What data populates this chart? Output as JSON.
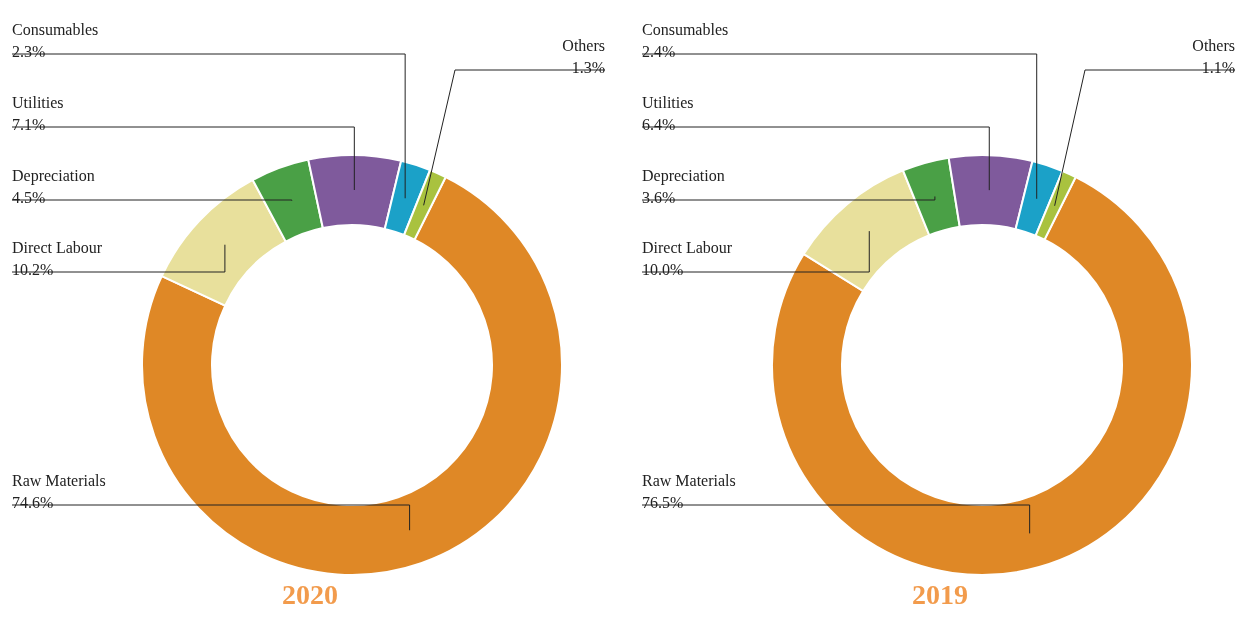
{
  "chart_data": [
    {
      "type": "donut",
      "title": "2020",
      "categories": [
        "Raw Materials",
        "Direct Labour",
        "Depreciation",
        "Utilities",
        "Consumables",
        "Others"
      ],
      "values": [
        74.6,
        10.2,
        4.5,
        7.1,
        2.3,
        1.3
      ],
      "value_labels": [
        "74.6%",
        "10.2%",
        "4.5%",
        "7.1%",
        "2.3%",
        "1.3%"
      ],
      "colors": [
        "#df8826",
        "#e8e09c",
        "#4aa046",
        "#7f5a9c",
        "#1ba1c8",
        "#a9c23f"
      ]
    },
    {
      "type": "donut",
      "title": "2019",
      "categories": [
        "Raw Materials",
        "Direct Labour",
        "Depreciation",
        "Utilities",
        "Consumables",
        "Others"
      ],
      "values": [
        76.5,
        10.0,
        3.6,
        6.4,
        2.4,
        1.1
      ],
      "value_labels": [
        "76.5%",
        "10.0%",
        "3.6%",
        "6.4%",
        "2.4%",
        "1.1%"
      ],
      "colors": [
        "#df8826",
        "#e8e09c",
        "#4aa046",
        "#7f5a9c",
        "#1ba1c8",
        "#a9c23f"
      ]
    }
  ]
}
